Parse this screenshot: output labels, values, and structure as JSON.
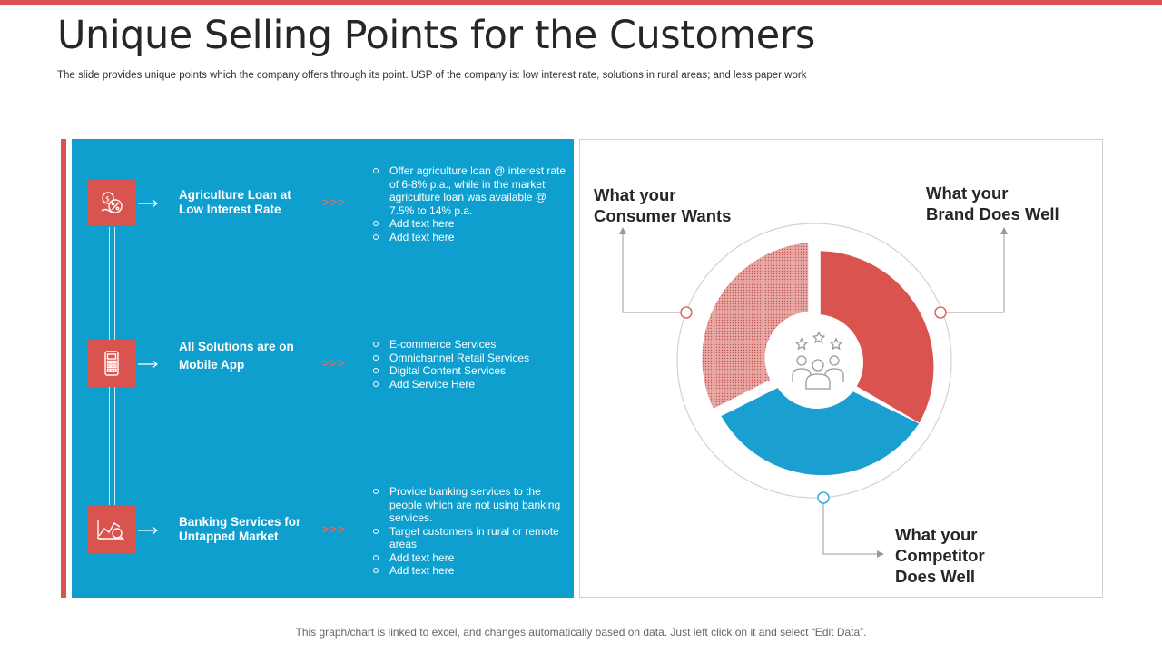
{
  "header": {
    "title": "Unique Selling Points for the Customers",
    "subtitle": "The slide provides unique points which the company offers through its point. USP of the company is: low interest rate, solutions in rural areas; and less paper work"
  },
  "rows": [
    {
      "icon": "loan-percent-icon",
      "title": "Agriculture Loan at Low Interest Rate",
      "chevrons": ">>>",
      "bullets": [
        "Offer agriculture loan @ interest rate of 6-8% p.a., while in the market agriculture loan was available @ 7.5% to 14% p.a.",
        "Add text here",
        "Add text here"
      ]
    },
    {
      "icon": "mobile-calculator-icon",
      "title_line1": "All Solutions are on",
      "title_line2": "Mobile App",
      "chevrons": ">>>",
      "bullets": [
        "E-commerce Services",
        "Omnichannel Retail Services",
        "Digital Content Services",
        "Add Service Here"
      ]
    },
    {
      "icon": "market-analysis-icon",
      "title": "Banking Services for Untapped Market",
      "chevrons": ">>>",
      "bullets": [
        "Provide banking services to the people which are not using banking services.",
        "Target customers in rural or remote areas",
        "Add text here",
        "Add text here"
      ]
    }
  ],
  "diagram": {
    "segments": [
      {
        "label_line1": "What your",
        "label_line2": "Consumer Wants",
        "color": "#d9534f",
        "pattern": "dotted"
      },
      {
        "label_line1": "What your",
        "label_line2": "Brand Does Well",
        "color": "#d9534f",
        "pattern": "solid"
      },
      {
        "label_line1": "What your",
        "label_line2": "Competitor",
        "label_line3": "Does Well",
        "color": "#1a9fd0",
        "pattern": "solid"
      }
    ],
    "center_icon": "team-rating-icon"
  },
  "footer": "This graph/chart is linked to excel, and changes automatically based on data. Just left click on it and select “Edit Data”.",
  "colors": {
    "accent": "#d9534f",
    "blue": "#0f9fcf"
  }
}
